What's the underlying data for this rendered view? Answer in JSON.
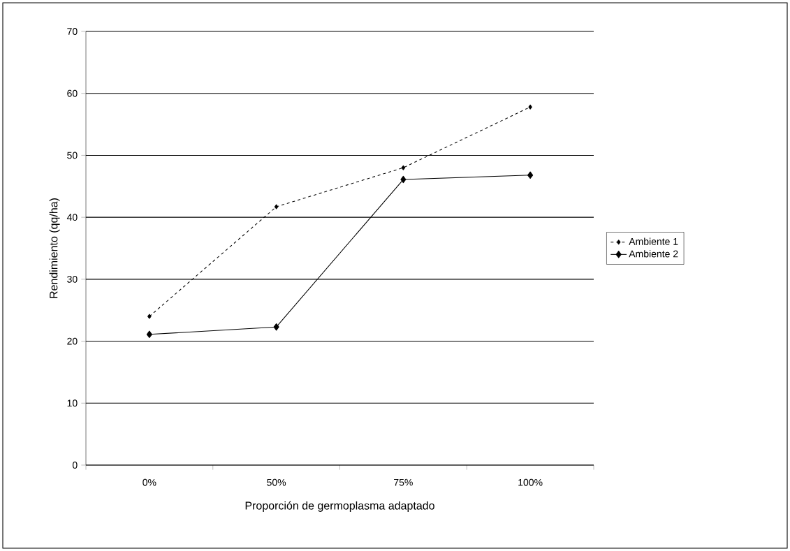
{
  "chart_data": {
    "type": "line",
    "xlabel": "Proporción de germoplasma adaptado",
    "ylabel": "Rendimiento (qq/ha)",
    "categories": [
      "0%",
      "50%",
      "75%",
      "100%"
    ],
    "series": [
      {
        "name": "Ambiente 1",
        "color": "#000000",
        "values": [
          24.0,
          41.7,
          48.0,
          57.8
        ],
        "marker": "diamond",
        "line_style": "dashed"
      },
      {
        "name": "Ambiente 2",
        "color": "#000000",
        "values": [
          21.1,
          22.3,
          46.1,
          46.8
        ],
        "marker": "diamond",
        "line_style": "solid"
      }
    ],
    "ylim": [
      0,
      70
    ],
    "yticks": [
      0,
      10,
      20,
      30,
      40,
      50,
      60,
      70
    ],
    "grid": "y",
    "legend": "right"
  }
}
